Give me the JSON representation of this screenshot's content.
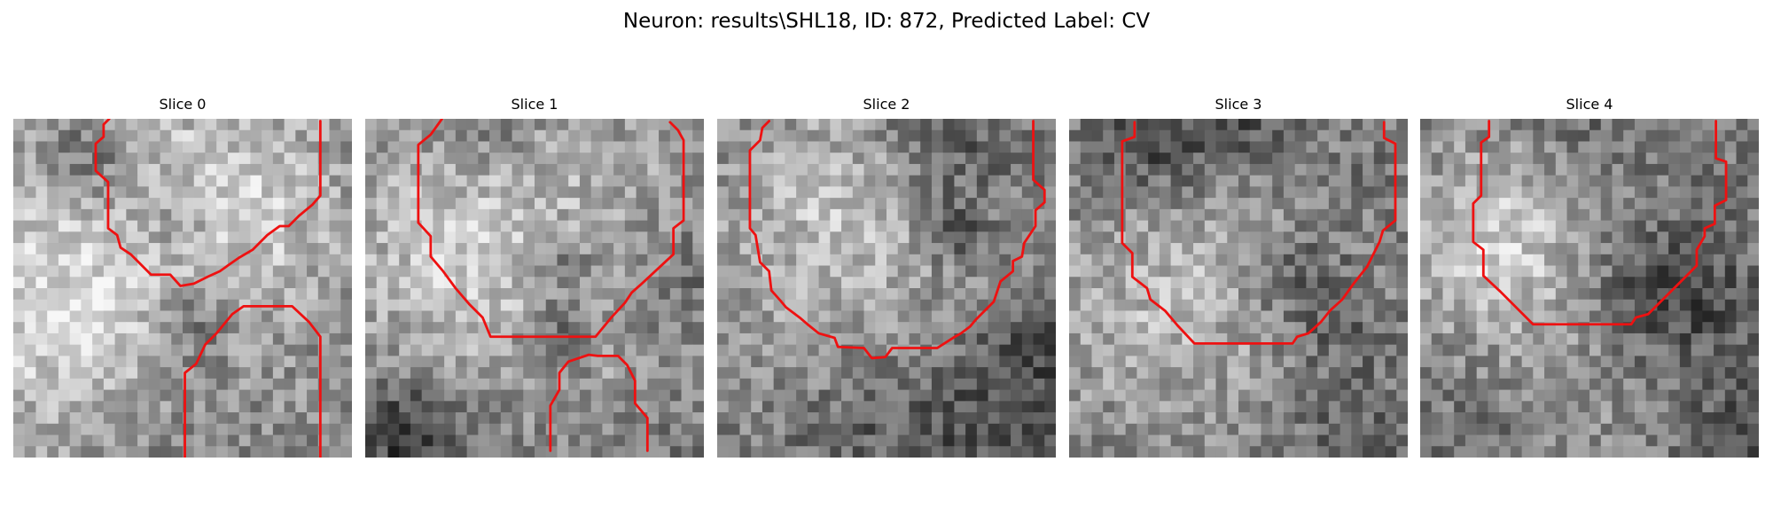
{
  "title": "Neuron: results\\SHL18, ID: 872, Predicted Label: CV",
  "contour_color": "#ee1111",
  "panels": [
    {
      "title": "Slice 0",
      "contours": [
        [
          [
            8.5,
            0
          ],
          [
            8,
            0.5
          ],
          [
            8,
            1.6
          ],
          [
            7.3,
            2.2
          ],
          [
            7.3,
            4.6
          ],
          [
            8.4,
            5.6
          ],
          [
            8.4,
            9.7
          ],
          [
            9.2,
            10.3
          ],
          [
            9.5,
            11.4
          ],
          [
            10.4,
            12
          ],
          [
            12.2,
            13.8
          ],
          [
            13.9,
            13.8
          ],
          [
            14.8,
            14.8
          ],
          [
            16,
            14.6
          ],
          [
            17.2,
            14
          ],
          [
            18.3,
            13.5
          ],
          [
            19,
            13
          ],
          [
            20,
            12.3
          ],
          [
            21.2,
            11.6
          ],
          [
            22.5,
            10.3
          ],
          [
            23.6,
            9.5
          ],
          [
            24.4,
            9.5
          ],
          [
            25.3,
            8.6
          ],
          [
            26.5,
            7.6
          ],
          [
            27.2,
            6.8
          ],
          [
            27.2,
            0.2
          ]
        ],
        [
          [
            15.2,
            30
          ],
          [
            15.2,
            22.5
          ],
          [
            16.2,
            21.7
          ],
          [
            17,
            20
          ],
          [
            18,
            19
          ],
          [
            19.4,
            17.3
          ],
          [
            20.4,
            16.6
          ],
          [
            21.7,
            16.6
          ],
          [
            24.7,
            16.6
          ],
          [
            26.2,
            18
          ],
          [
            27.2,
            19.3
          ],
          [
            27.2,
            30
          ]
        ]
      ]
    },
    {
      "title": "Slice 1",
      "contours": [
        [
          [
            6.8,
            0
          ],
          [
            5.8,
            1.4
          ],
          [
            4.7,
            2.3
          ],
          [
            4.7,
            9.2
          ],
          [
            5.8,
            10.4
          ],
          [
            5.8,
            12.2
          ],
          [
            6.9,
            13.5
          ],
          [
            8,
            15
          ],
          [
            9.2,
            16.4
          ],
          [
            10.4,
            17.6
          ],
          [
            11.1,
            19.3
          ],
          [
            16.4,
            19.3
          ],
          [
            20.4,
            19.3
          ],
          [
            21.8,
            17.6
          ],
          [
            23,
            16.3
          ],
          [
            23.6,
            15.4
          ],
          [
            24.5,
            14.6
          ],
          [
            27.3,
            12
          ],
          [
            27.3,
            9.7
          ],
          [
            28.2,
            9
          ],
          [
            28.2,
            1.9
          ],
          [
            27.7,
            1
          ],
          [
            27,
            0.3
          ]
        ],
        [
          [
            16.4,
            29.4
          ],
          [
            16.4,
            25.4
          ],
          [
            17.2,
            24
          ],
          [
            17.2,
            22.5
          ],
          [
            18,
            21.5
          ],
          [
            19.8,
            20.9
          ],
          [
            20.6,
            21
          ],
          [
            22.4,
            21
          ],
          [
            23.2,
            21.8
          ],
          [
            23.9,
            23.2
          ],
          [
            23.9,
            25.2
          ],
          [
            25,
            26.5
          ],
          [
            25,
            29.4
          ]
        ]
      ]
    },
    {
      "title": "Slice 2",
      "contours": [
        [
          [
            4.6,
            0.2
          ],
          [
            4,
            0.8
          ],
          [
            3.8,
            1.9
          ],
          [
            2.9,
            2.8
          ],
          [
            2.9,
            9.7
          ],
          [
            3.4,
            10.3
          ],
          [
            3.8,
            12.7
          ],
          [
            4.6,
            13.5
          ],
          [
            4.8,
            15.2
          ],
          [
            5.6,
            16.1
          ],
          [
            6.1,
            16.7
          ],
          [
            7.3,
            17.6
          ],
          [
            8,
            18.2
          ],
          [
            9,
            19
          ],
          [
            10.4,
            19.4
          ],
          [
            10.7,
            20.2
          ],
          [
            13,
            20.3
          ],
          [
            13.7,
            21.2
          ],
          [
            14.9,
            21.1
          ],
          [
            15.5,
            20.3
          ],
          [
            19.5,
            20.3
          ],
          [
            20.9,
            19.4
          ],
          [
            21.6,
            19
          ],
          [
            22.4,
            18.4
          ],
          [
            22.9,
            17.8
          ],
          [
            23.9,
            16.8
          ],
          [
            24.5,
            16.2
          ],
          [
            25.1,
            14.4
          ],
          [
            26.2,
            13.5
          ],
          [
            26.2,
            12.6
          ],
          [
            27,
            12.2
          ],
          [
            27.2,
            11
          ],
          [
            28.2,
            9.5
          ],
          [
            28.2,
            8.1
          ],
          [
            29,
            7.4
          ],
          [
            29,
            6.3
          ],
          [
            28,
            5.4
          ],
          [
            28,
            0.2
          ]
        ]
      ]
    },
    {
      "title": "Slice 3",
      "contours": [
        [
          [
            5.8,
            0.3
          ],
          [
            5.8,
            1.6
          ],
          [
            4.7,
            2
          ],
          [
            4.7,
            11
          ],
          [
            5.6,
            11.9
          ],
          [
            5.6,
            14
          ],
          [
            6.9,
            15
          ],
          [
            7.2,
            16
          ],
          [
            8.5,
            17
          ],
          [
            9.6,
            18.3
          ],
          [
            11.1,
            19.9
          ],
          [
            15.8,
            19.9
          ],
          [
            19.8,
            19.9
          ],
          [
            20.2,
            19.3
          ],
          [
            21.2,
            19
          ],
          [
            22.3,
            18
          ],
          [
            23.1,
            17
          ],
          [
            24.2,
            16
          ],
          [
            25.2,
            14.6
          ],
          [
            26.4,
            13.1
          ],
          [
            27.5,
            10.9
          ],
          [
            27.8,
            9.9
          ],
          [
            28.9,
            9
          ],
          [
            28.9,
            2.2
          ],
          [
            27.9,
            1.7
          ],
          [
            27.9,
            0.3
          ]
        ]
      ]
    },
    {
      "title": "Slice 4",
      "contours": [
        [
          [
            6.1,
            0.2
          ],
          [
            6.1,
            1.6
          ],
          [
            5.4,
            2.1
          ],
          [
            5.4,
            6.8
          ],
          [
            4.7,
            7.5
          ],
          [
            4.7,
            10.9
          ],
          [
            5.6,
            11.6
          ],
          [
            5.6,
            13.9
          ],
          [
            7.1,
            15.3
          ],
          [
            10,
            18.2
          ],
          [
            18.7,
            18.2
          ],
          [
            19.1,
            17.6
          ],
          [
            20.2,
            17.3
          ],
          [
            21.9,
            15.6
          ],
          [
            23.2,
            14.3
          ],
          [
            24.5,
            13
          ],
          [
            24.5,
            11.6
          ],
          [
            25.2,
            10.4
          ],
          [
            25.2,
            9.7
          ],
          [
            26.1,
            9.3
          ],
          [
            26.1,
            7.7
          ],
          [
            27.1,
            7.2
          ],
          [
            27.1,
            3.8
          ],
          [
            26.2,
            3.5
          ],
          [
            26.2,
            0.2
          ]
        ]
      ]
    }
  ]
}
